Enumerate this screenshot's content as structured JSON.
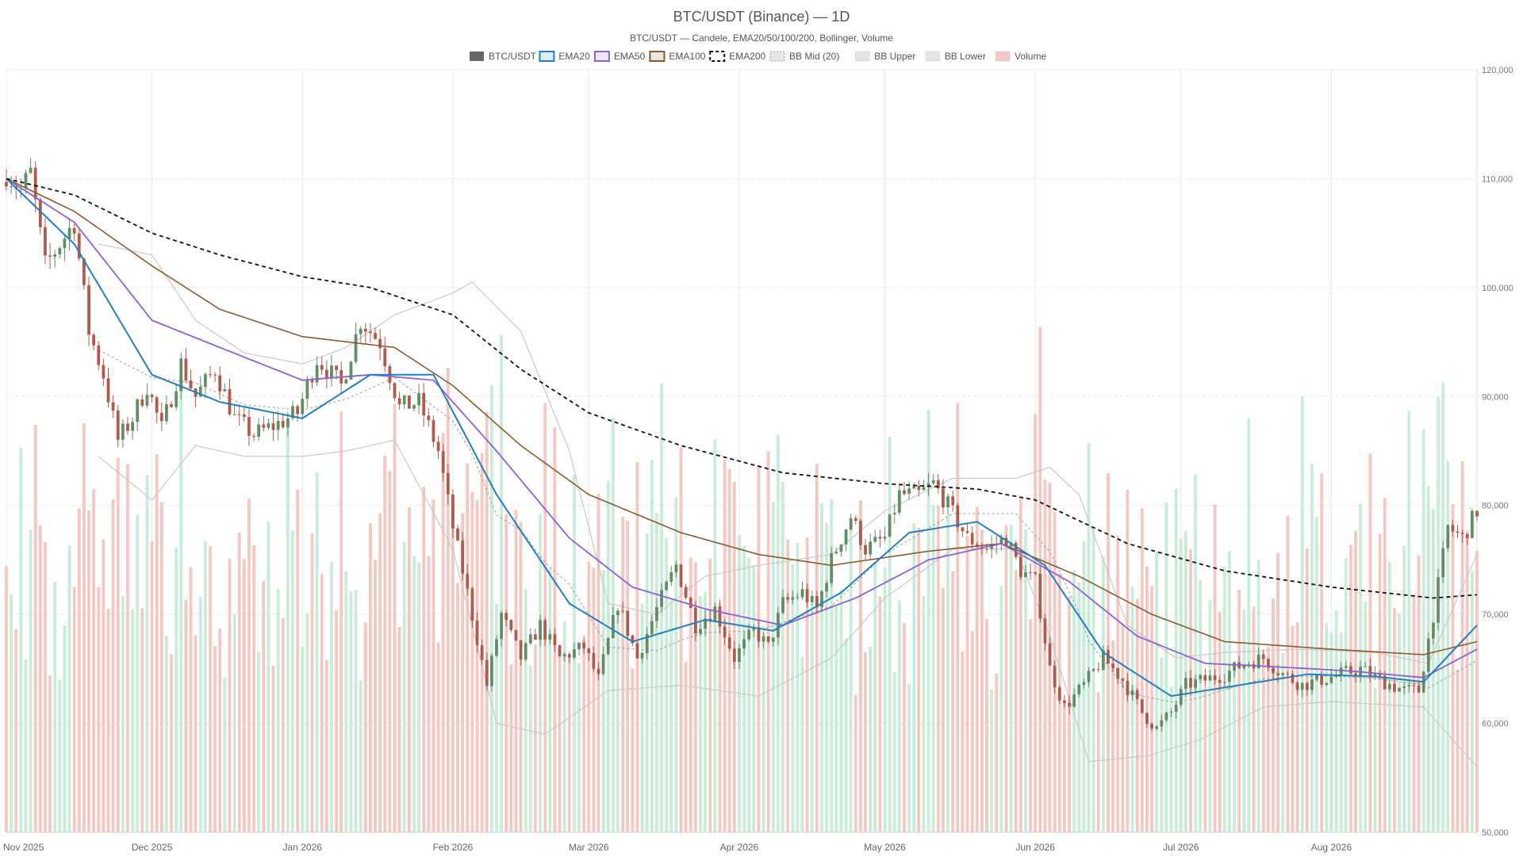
{
  "chart_data": {
    "type": "candlestick",
    "title": "BTC/USDT (Binance) — 1D",
    "subtitle": "BTC/USDT — Candele, EMA20/50/100/200, Bollinger, Volume",
    "symbol": "BTC/USDT",
    "interval": "1D",
    "legend": [
      {
        "label": "BTC/USDT",
        "swatch": "solid",
        "color": "#666666"
      },
      {
        "label": "EMA20",
        "swatch": "box",
        "color": "#1f7fc4"
      },
      {
        "label": "EMA50",
        "swatch": "box",
        "color": "#8e5fd6"
      },
      {
        "label": "EMA100",
        "swatch": "box",
        "color": "#8b5a2b"
      },
      {
        "label": "EMA200",
        "swatch": "dashed",
        "color": "#111111"
      },
      {
        "label": "BB Mid (20)",
        "swatch": "dotted",
        "color": "#999999"
      },
      {
        "label": "BB Upper",
        "swatch": "plain",
        "color": "#c8c8c8"
      },
      {
        "label": "BB Lower",
        "swatch": "plain",
        "color": "#c8c8c8"
      },
      {
        "label": "Volume",
        "swatch": "plain",
        "color": "#f4c7c0"
      }
    ],
    "legend_position": "top-center",
    "y_axis": {
      "side": "right",
      "min": 50000,
      "max": 120000,
      "ticks": [
        "50,000",
        "60,000",
        "70,000",
        "80,000",
        "90,000",
        "100,000",
        "110,000",
        "120,000"
      ]
    },
    "x_axis": {
      "start": "2025-11-01",
      "end": "2026-08-31",
      "ticks": [
        {
          "label": "Nov 2025",
          "date": "2025-11-01"
        },
        {
          "label": "Dec 2025",
          "date": "2025-12-01"
        },
        {
          "label": "Jan 2026",
          "date": "2026-01-01"
        },
        {
          "label": "Feb 2026",
          "date": "2026-02-01"
        },
        {
          "label": "Mar 2026",
          "date": "2026-03-01"
        },
        {
          "label": "Apr 2026",
          "date": "2026-04-01"
        },
        {
          "label": "May 2026",
          "date": "2026-05-01"
        },
        {
          "label": "Jun 2026",
          "date": "2026-06-01"
        },
        {
          "label": "Jul 2026",
          "date": "2026-07-01"
        },
        {
          "label": "Aug 2026",
          "date": "2026-08-01"
        }
      ]
    },
    "grid": true,
    "colors": {
      "up": "#5e8f65",
      "down": "#b05a4a",
      "vol_up": "#c7ecd7",
      "vol_down": "#f4c7c0",
      "ema20": "#1f7fc4",
      "ema50": "#8e5fd6",
      "ema100": "#8b5a2b",
      "ema200": "#111111",
      "bb": "#c8c8c8",
      "bb_mid": "#999999"
    },
    "close_anchors": [
      [
        "2025-11-01",
        110500
      ],
      [
        "2025-11-04",
        109000
      ],
      [
        "2025-11-06",
        110500
      ],
      [
        "2025-11-09",
        102000
      ],
      [
        "2025-11-12",
        104000
      ],
      [
        "2025-11-15",
        106000
      ],
      [
        "2025-11-18",
        96000
      ],
      [
        "2025-11-21",
        92000
      ],
      [
        "2025-11-24",
        86000
      ],
      [
        "2025-11-27",
        88000
      ],
      [
        "2025-11-30",
        91000
      ],
      [
        "2025-12-03",
        87000
      ],
      [
        "2025-12-07",
        93000
      ],
      [
        "2025-12-10",
        90000
      ],
      [
        "2025-12-14",
        92500
      ],
      [
        "2025-12-18",
        88000
      ],
      [
        "2025-12-22",
        86500
      ],
      [
        "2025-12-27",
        87500
      ],
      [
        "2025-12-31",
        88500
      ],
      [
        "2026-01-04",
        93500
      ],
      [
        "2026-01-09",
        91000
      ],
      [
        "2026-01-13",
        97000
      ],
      [
        "2026-01-17",
        95000
      ],
      [
        "2026-01-21",
        89000
      ],
      [
        "2026-01-25",
        89500
      ],
      [
        "2026-01-29",
        85000
      ],
      [
        "2026-02-01",
        78000
      ],
      [
        "2026-02-04",
        72000
      ],
      [
        "2026-02-08",
        63500
      ],
      [
        "2026-02-11",
        70000
      ],
      [
        "2026-02-15",
        66000
      ],
      [
        "2026-02-19",
        69000
      ],
      [
        "2026-02-23",
        66000
      ],
      [
        "2026-02-28",
        67000
      ],
      [
        "2026-03-03",
        64000
      ],
      [
        "2026-03-07",
        71000
      ],
      [
        "2026-03-11",
        66000
      ],
      [
        "2026-03-15",
        70500
      ],
      [
        "2026-03-19",
        74500
      ],
      [
        "2026-03-23",
        69000
      ],
      [
        "2026-03-27",
        70500
      ],
      [
        "2026-03-31",
        66000
      ],
      [
        "2026-04-04",
        68500
      ],
      [
        "2026-04-07",
        67000
      ],
      [
        "2026-04-10",
        71000
      ],
      [
        "2026-04-14",
        72000
      ],
      [
        "2026-04-17",
        70500
      ],
      [
        "2026-04-20",
        75000
      ],
      [
        "2026-04-24",
        79000
      ],
      [
        "2026-04-27",
        76000
      ],
      [
        "2026-05-01",
        77000
      ],
      [
        "2026-05-04",
        81000
      ],
      [
        "2026-05-08",
        81000
      ],
      [
        "2026-05-11",
        82000
      ],
      [
        "2026-05-14",
        80000
      ],
      [
        "2026-05-18",
        77000
      ],
      [
        "2026-05-22",
        76000
      ],
      [
        "2026-05-26",
        77000
      ],
      [
        "2026-05-29",
        74000
      ],
      [
        "2026-06-01",
        73000
      ],
      [
        "2026-06-04",
        65000
      ],
      [
        "2026-06-07",
        61500
      ],
      [
        "2026-06-11",
        63500
      ],
      [
        "2026-06-15",
        66000
      ],
      [
        "2026-06-19",
        64000
      ],
      [
        "2026-06-23",
        61000
      ],
      [
        "2026-06-26",
        59500
      ],
      [
        "2026-06-29",
        61000
      ],
      [
        "2026-07-02",
        63500
      ],
      [
        "2026-07-06",
        64000
      ],
      [
        "2026-07-10",
        64500
      ],
      [
        "2026-07-14",
        65500
      ],
      [
        "2026-07-18",
        66000
      ],
      [
        "2026-07-22",
        64500
      ],
      [
        "2026-07-26",
        63500
      ],
      [
        "2026-07-30",
        64000
      ],
      [
        "2026-08-03",
        64500
      ],
      [
        "2026-08-07",
        65000
      ],
      [
        "2026-08-11",
        64000
      ],
      [
        "2026-08-16",
        63000
      ],
      [
        "2026-08-19",
        63000
      ],
      [
        "2026-08-22",
        70000
      ],
      [
        "2026-08-25",
        78000
      ],
      [
        "2026-08-28",
        77000
      ],
      [
        "2026-08-31",
        79500
      ]
    ],
    "ema_anchors": {
      "ema20": [
        [
          "2025-11-01",
          110000
        ],
        [
          "2025-11-15",
          104000
        ],
        [
          "2025-12-01",
          92000
        ],
        [
          "2025-12-15",
          89500
        ],
        [
          "2026-01-01",
          88000
        ],
        [
          "2026-01-15",
          92000
        ],
        [
          "2026-01-28",
          92000
        ],
        [
          "2026-02-10",
          81000
        ],
        [
          "2026-02-25",
          71000
        ],
        [
          "2026-03-10",
          67500
        ],
        [
          "2026-03-25",
          69500
        ],
        [
          "2026-04-08",
          68500
        ],
        [
          "2026-04-22",
          72000
        ],
        [
          "2026-05-06",
          77500
        ],
        [
          "2026-05-20",
          78500
        ],
        [
          "2026-06-03",
          74500
        ],
        [
          "2026-06-15",
          66500
        ],
        [
          "2026-06-29",
          62500
        ],
        [
          "2026-07-13",
          63500
        ],
        [
          "2026-07-27",
          64500
        ],
        [
          "2026-08-10",
          64300
        ],
        [
          "2026-08-20",
          63800
        ],
        [
          "2026-08-31",
          69000
        ]
      ],
      "ema50": [
        [
          "2025-11-01",
          110000
        ],
        [
          "2025-11-15",
          106000
        ],
        [
          "2025-12-01",
          97000
        ],
        [
          "2025-12-15",
          94500
        ],
        [
          "2026-01-01",
          91500
        ],
        [
          "2026-01-15",
          92000
        ],
        [
          "2026-01-28",
          91500
        ],
        [
          "2026-02-10",
          85000
        ],
        [
          "2026-02-25",
          77000
        ],
        [
          "2026-03-10",
          72500
        ],
        [
          "2026-03-25",
          70500
        ],
        [
          "2026-04-10",
          69000
        ],
        [
          "2026-04-25",
          71500
        ],
        [
          "2026-05-10",
          75000
        ],
        [
          "2026-05-25",
          76500
        ],
        [
          "2026-06-08",
          73000
        ],
        [
          "2026-06-22",
          68000
        ],
        [
          "2026-07-06",
          65500
        ],
        [
          "2026-07-20",
          65200
        ],
        [
          "2026-08-05",
          64800
        ],
        [
          "2026-08-20",
          64200
        ],
        [
          "2026-08-31",
          66800
        ]
      ],
      "ema100": [
        [
          "2025-11-01",
          110000
        ],
        [
          "2025-11-15",
          107000
        ],
        [
          "2025-12-01",
          102000
        ],
        [
          "2025-12-15",
          98000
        ],
        [
          "2026-01-01",
          95500
        ],
        [
          "2026-01-20",
          94500
        ],
        [
          "2026-02-01",
          91000
        ],
        [
          "2026-02-15",
          85500
        ],
        [
          "2026-03-01",
          81000
        ],
        [
          "2026-03-20",
          77500
        ],
        [
          "2026-04-05",
          75500
        ],
        [
          "2026-04-20",
          74500
        ],
        [
          "2026-05-10",
          75800
        ],
        [
          "2026-05-25",
          76500
        ],
        [
          "2026-06-10",
          73500
        ],
        [
          "2026-06-25",
          70000
        ],
        [
          "2026-07-10",
          67500
        ],
        [
          "2026-08-01",
          66800
        ],
        [
          "2026-08-20",
          66300
        ],
        [
          "2026-08-31",
          67500
        ]
      ],
      "ema200": [
        [
          "2025-11-01",
          110000
        ],
        [
          "2025-11-15",
          108500
        ],
        [
          "2025-12-01",
          105000
        ],
        [
          "2025-12-15",
          103000
        ],
        [
          "2026-01-01",
          101000
        ],
        [
          "2026-01-15",
          100000
        ],
        [
          "2026-02-01",
          97500
        ],
        [
          "2026-02-15",
          92500
        ],
        [
          "2026-03-01",
          88500
        ],
        [
          "2026-03-20",
          85500
        ],
        [
          "2026-04-10",
          83000
        ],
        [
          "2026-05-01",
          82000
        ],
        [
          "2026-05-20",
          81500
        ],
        [
          "2026-06-01",
          80500
        ],
        [
          "2026-06-20",
          76500
        ],
        [
          "2026-07-10",
          74000
        ],
        [
          "2026-08-01",
          72500
        ],
        [
          "2026-08-22",
          71500
        ],
        [
          "2026-08-31",
          71800
        ]
      ]
    },
    "bollinger_anchors": {
      "upper": [
        [
          "2025-11-20",
          104000
        ],
        [
          "2025-12-01",
          103000
        ],
        [
          "2025-12-10",
          97000
        ],
        [
          "2025-12-20",
          94000
        ],
        [
          "2026-01-01",
          93000
        ],
        [
          "2026-01-10",
          94500
        ],
        [
          "2026-01-20",
          97500
        ],
        [
          "2026-02-01",
          99500
        ],
        [
          "2026-02-05",
          100500
        ],
        [
          "2026-02-15",
          96000
        ],
        [
          "2026-02-25",
          85000
        ],
        [
          "2026-03-05",
          71000
        ],
        [
          "2026-03-15",
          70000
        ],
        [
          "2026-03-25",
          73500
        ],
        [
          "2026-04-05",
          74500
        ],
        [
          "2026-04-20",
          75500
        ],
        [
          "2026-05-01",
          79500
        ],
        [
          "2026-05-15",
          82500
        ],
        [
          "2026-05-28",
          82500
        ],
        [
          "2026-06-04",
          83500
        ],
        [
          "2026-06-10",
          81000
        ],
        [
          "2026-06-20",
          69000
        ],
        [
          "2026-06-30",
          66000
        ],
        [
          "2026-07-10",
          66500
        ],
        [
          "2026-07-25",
          66800
        ],
        [
          "2026-08-10",
          66500
        ],
        [
          "2026-08-21",
          65500
        ],
        [
          "2026-08-31",
          75500
        ]
      ],
      "lower": [
        [
          "2025-11-20",
          84500
        ],
        [
          "2025-12-01",
          80500
        ],
        [
          "2025-12-10",
          85500
        ],
        [
          "2025-12-20",
          84500
        ],
        [
          "2026-01-01",
          84500
        ],
        [
          "2026-01-10",
          85000
        ],
        [
          "2026-01-20",
          86000
        ],
        [
          "2026-02-01",
          76000
        ],
        [
          "2026-02-10",
          60000
        ],
        [
          "2026-02-20",
          59000
        ],
        [
          "2026-03-05",
          63000
        ],
        [
          "2026-03-20",
          63500
        ],
        [
          "2026-04-05",
          62500
        ],
        [
          "2026-04-20",
          66000
        ],
        [
          "2026-05-01",
          71500
        ],
        [
          "2026-05-15",
          76000
        ],
        [
          "2026-05-28",
          76000
        ],
        [
          "2026-06-04",
          68000
        ],
        [
          "2026-06-12",
          56500
        ],
        [
          "2026-06-24",
          57000
        ],
        [
          "2026-07-05",
          58500
        ],
        [
          "2026-07-18",
          61500
        ],
        [
          "2026-08-01",
          62000
        ],
        [
          "2026-08-20",
          61500
        ],
        [
          "2026-08-31",
          56000
        ]
      ]
    }
  }
}
